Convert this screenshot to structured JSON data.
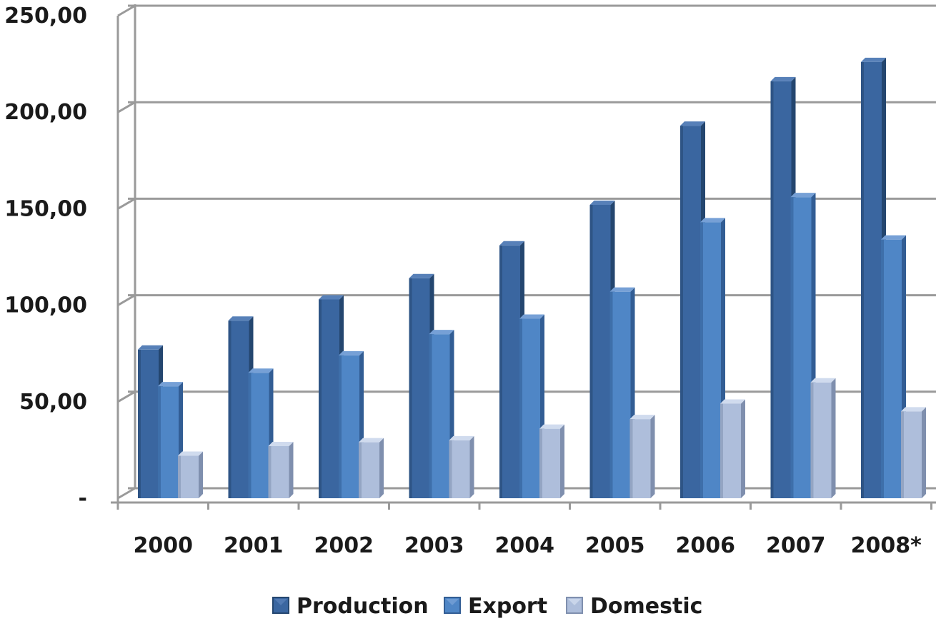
{
  "chart_data": {
    "type": "bar",
    "title": "",
    "xlabel": "",
    "ylabel": "",
    "ylim": [
      0,
      250
    ],
    "y_ticks": [
      "-",
      "50,00",
      "100,00",
      "150,00",
      "200,00",
      "250,00"
    ],
    "y_tick_values": [
      0,
      50,
      100,
      150,
      200,
      250
    ],
    "categories": [
      "2000",
      "2001",
      "2002",
      "2003",
      "2004",
      "2005",
      "2006",
      "2007",
      "2008*"
    ],
    "series": [
      {
        "name": "Production",
        "values": [
          77,
          92,
          103,
          114,
          131,
          152,
          193,
          216,
          226
        ]
      },
      {
        "name": "Export",
        "values": [
          58,
          65,
          74,
          85,
          93,
          107,
          143,
          156,
          134
        ]
      },
      {
        "name": "Domestic",
        "values": [
          22,
          27,
          29,
          30,
          36,
          41,
          49,
          60,
          45
        ]
      }
    ],
    "grid": true,
    "legend_position": "bottom",
    "style": "3d-column",
    "colors": {
      "Production": {
        "front": "#3a66a0",
        "side": "#24466f",
        "top": "#5780b8"
      },
      "Export": {
        "front": "#4f86c6",
        "side": "#325d94",
        "top": "#76a0d6"
      },
      "Domestic": {
        "front": "#aebedb",
        "side": "#7f8fae",
        "top": "#d0dbee"
      },
      "gridline": "#9a9a9a",
      "text": "#1a1a1a"
    }
  }
}
